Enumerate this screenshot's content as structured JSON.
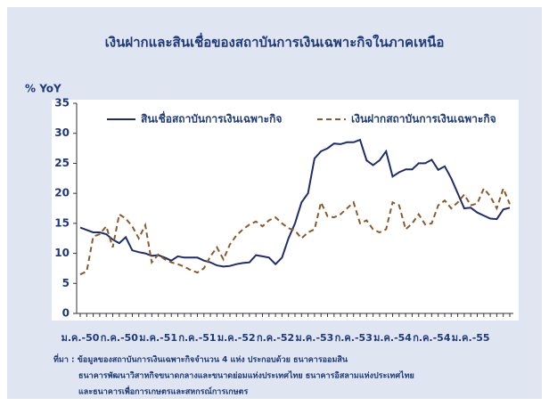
{
  "chart_data": {
    "type": "line",
    "title": "เงินฝากและสินเชื่อของสถาบันการเงินเฉพาะกิจในภาคเหนือ",
    "ylabel": "% YoY",
    "categories": [
      "ม.ค.-50",
      null,
      null,
      null,
      null,
      null,
      "ก.ค.-50",
      null,
      null,
      null,
      null,
      null,
      "ม.ค.-51",
      null,
      null,
      null,
      null,
      null,
      "ก.ค.-51",
      null,
      null,
      null,
      null,
      null,
      "ม.ค.-52",
      null,
      null,
      null,
      null,
      null,
      "ก.ค.-52",
      null,
      null,
      null,
      null,
      null,
      "ม.ค.-53",
      null,
      null,
      null,
      null,
      null,
      "ก.ค.-53",
      null,
      null,
      null,
      null,
      null,
      "ม.ค.-54",
      null,
      null,
      null,
      null,
      null,
      "ก.ค.-54",
      null,
      null,
      null,
      null,
      null,
      "ม.ค.-55",
      null,
      null,
      null,
      null,
      null,
      null
    ],
    "series": [
      {
        "name": "สินเชื่อสถาบันการเงินเฉพาะกิจ",
        "color": "#1f2d6e",
        "dash": false,
        "values": [
          14.3,
          13.9,
          13.5,
          13.5,
          13.2,
          12.3,
          11.7,
          12.7,
          10.5,
          10.2,
          10.0,
          9.6,
          9.7,
          9.3,
          8.8,
          9.5,
          9.3,
          9.3,
          9.3,
          8.8,
          8.5,
          8.0,
          7.8,
          7.9,
          8.2,
          8.4,
          8.5,
          9.7,
          9.5,
          9.3,
          8.2,
          9.3,
          12.5,
          15.0,
          18.5,
          20.0,
          25.8,
          27.0,
          27.5,
          28.3,
          28.2,
          28.5,
          28.5,
          28.9,
          25.5,
          24.7,
          25.5,
          27.0,
          22.8,
          23.5,
          24.0,
          24.0,
          25.0,
          25.0,
          25.6,
          23.9,
          24.5,
          22.5,
          20.0,
          17.5,
          17.6,
          16.8,
          16.3,
          15.8,
          15.7,
          17.3,
          17.6
        ]
      },
      {
        "name": "เงินฝากสถาบันการเงินเฉพาะกิจ",
        "color": "#8b5a2b",
        "dash": true,
        "values": [
          6.5,
          7.0,
          12.8,
          13.2,
          14.5,
          11.0,
          16.5,
          15.8,
          14.5,
          12.5,
          14.7,
          8.5,
          9.8,
          9.0,
          8.5,
          8.2,
          7.8,
          7.2,
          6.8,
          7.5,
          9.5,
          11.0,
          9.0,
          11.5,
          13.0,
          14.0,
          14.8,
          15.3,
          14.5,
          15.5,
          16.0,
          15.0,
          14.2,
          13.8,
          12.5,
          13.5,
          14.0,
          18.5,
          16.2,
          16.0,
          16.5,
          17.5,
          18.5,
          15.0,
          15.5,
          14.0,
          13.5,
          14.0,
          18.5,
          18.0,
          14.0,
          15.0,
          16.5,
          14.8,
          15.0,
          18.0,
          18.8,
          17.5,
          18.5,
          19.8,
          18.0,
          18.3,
          20.8,
          19.5,
          17.5,
          20.8,
          18.2
        ]
      }
    ],
    "ylim": [
      0,
      35
    ],
    "yticks": [
      0,
      5,
      10,
      15,
      20,
      25,
      30,
      35
    ],
    "grid": false,
    "legend": "top",
    "notes": [
      "ที่มา : ข้อมูลของสถาบันการเงินเฉพาะกิจจำนวน 4 แห่ง ประกอบด้วย ธนาคารออมสิน",
      "ธนาคารพัฒนาวิสาหกิจขนาดกลางและขนาดย่อมแห่งประเทศไทย ธนาคารอิสลามแห่งประเทศไทย",
      "และธนาคารเพื่อการเกษตรและสหกรณ์การเกษตร"
    ]
  }
}
